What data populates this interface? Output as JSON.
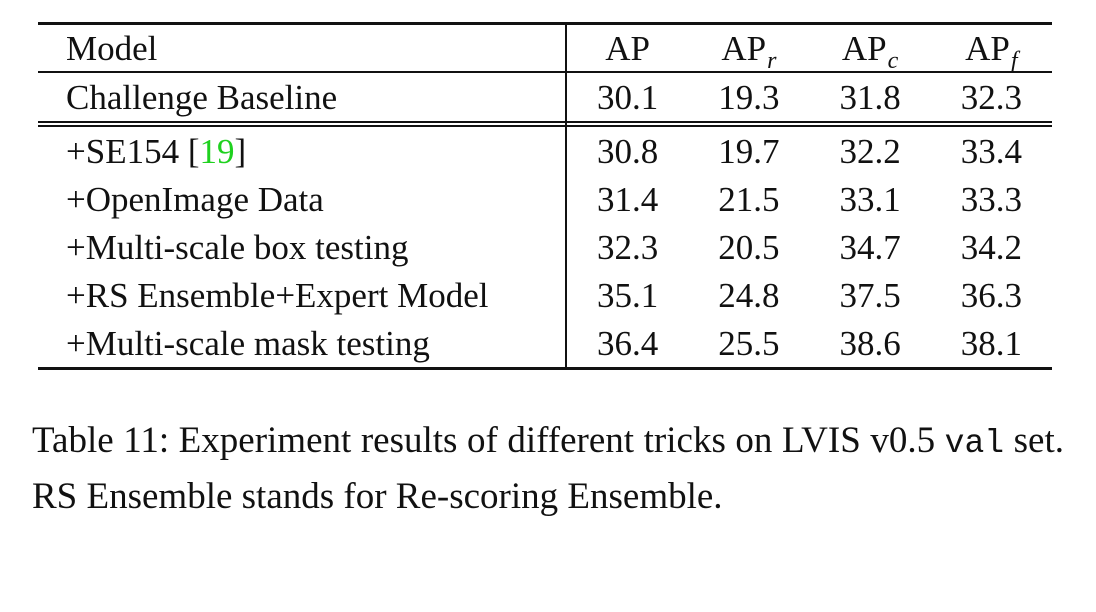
{
  "table": {
    "columns": [
      {
        "text": "Model",
        "sub": ""
      },
      {
        "text": "AP",
        "sub": ""
      },
      {
        "text": "AP",
        "sub": "r"
      },
      {
        "text": "AP",
        "sub": "c"
      },
      {
        "text": "AP",
        "sub": "f"
      }
    ],
    "baseline": {
      "model": "Challenge Baseline",
      "values": [
        "30.1",
        "19.3",
        "31.8",
        "32.3"
      ]
    },
    "rows": [
      {
        "model": "+SE154 [",
        "cite": "19",
        "model_suffix": "]",
        "values": [
          "30.8",
          "19.7",
          "32.2",
          "33.4"
        ]
      },
      {
        "model": "+OpenImage Data",
        "values": [
          "31.4",
          "21.5",
          "33.1",
          "33.3"
        ]
      },
      {
        "model": "+Multi-scale box testing",
        "values": [
          "32.3",
          "20.5",
          "34.7",
          "34.2"
        ]
      },
      {
        "model": "+RS Ensemble+Expert Model",
        "values": [
          "35.1",
          "24.8",
          "37.5",
          "36.3"
        ]
      },
      {
        "model": "+Multi-scale mask testing",
        "values": [
          "36.4",
          "25.5",
          "38.6",
          "38.1"
        ],
        "bold": true
      }
    ]
  },
  "caption": {
    "part1": "Table 11: Experiment results of different tricks on LVIS v0.5 ",
    "code": "val",
    "part2": " set. RS Ensemble stands for Re-scoring Ensemble."
  }
}
